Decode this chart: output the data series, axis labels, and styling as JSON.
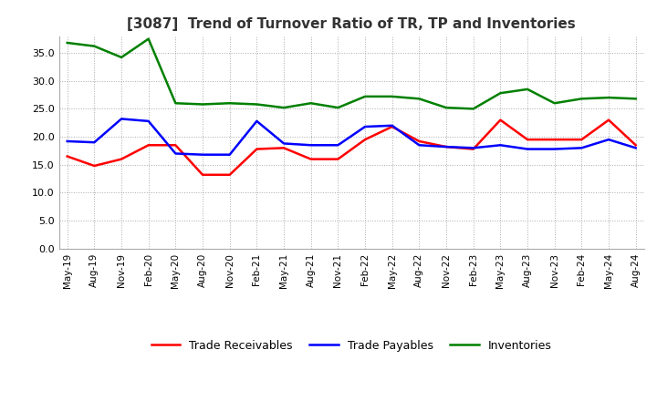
{
  "title": "[3087]  Trend of Turnover Ratio of TR, TP and Inventories",
  "title_fontsize": 11,
  "legend_labels": [
    "Trade Receivables",
    "Trade Payables",
    "Inventories"
  ],
  "legend_colors": [
    "#ff0000",
    "#0000ff",
    "#008000"
  ],
  "ylim": [
    0,
    38
  ],
  "yticks": [
    0.0,
    5.0,
    10.0,
    15.0,
    20.0,
    25.0,
    30.0,
    35.0
  ],
  "x_labels": [
    "May-19",
    "Aug-19",
    "Nov-19",
    "Feb-20",
    "May-20",
    "Aug-20",
    "Nov-20",
    "Feb-21",
    "May-21",
    "Aug-21",
    "Nov-21",
    "Feb-22",
    "May-22",
    "Aug-22",
    "Nov-22",
    "Feb-23",
    "May-23",
    "Aug-23",
    "Nov-23",
    "Feb-24",
    "May-24",
    "Aug-24"
  ],
  "trade_receivables": [
    16.5,
    14.8,
    16.0,
    18.5,
    18.5,
    13.2,
    13.2,
    17.8,
    18.0,
    16.0,
    16.0,
    19.5,
    21.8,
    19.2,
    18.2,
    17.8,
    23.0,
    19.5,
    19.5,
    19.5,
    23.0,
    18.5
  ],
  "trade_payables": [
    19.2,
    19.0,
    23.2,
    22.8,
    17.0,
    16.8,
    16.8,
    22.8,
    18.8,
    18.5,
    18.5,
    21.8,
    22.0,
    18.5,
    18.2,
    18.0,
    18.5,
    17.8,
    17.8,
    18.0,
    19.5,
    18.0
  ],
  "inventories": [
    36.8,
    36.2,
    34.2,
    37.5,
    26.0,
    25.8,
    26.0,
    25.8,
    25.2,
    26.0,
    25.2,
    27.2,
    27.2,
    26.8,
    25.2,
    25.0,
    27.8,
    28.5,
    26.0,
    26.8,
    27.0,
    26.8
  ],
  "background_color": "#ffffff",
  "grid_color": "#aaaaaa",
  "line_width": 1.8
}
